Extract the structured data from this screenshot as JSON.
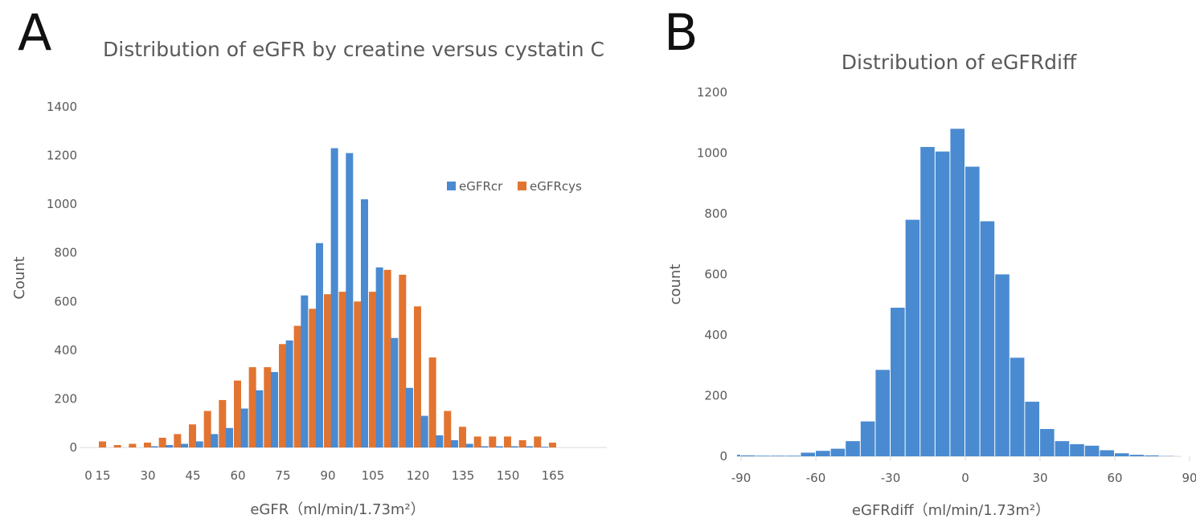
{
  "panels": {
    "a_letter": "A",
    "b_letter": "B"
  },
  "chart_data": [
    {
      "type": "bar",
      "title": "Distribution of eGFR by creatine versus cystatin C",
      "xlabel": "eGFR（ml/min/1.73m²）",
      "ylabel": "Count",
      "ylim": [
        0,
        1400
      ],
      "yticks": [
        0,
        200,
        400,
        600,
        800,
        1000,
        1200,
        1400
      ],
      "xticks": [
        "0",
        "15",
        "30",
        "45",
        "60",
        "75",
        "90",
        "105",
        "120",
        "135",
        "150",
        "165"
      ],
      "categories": [
        15,
        20,
        25,
        30,
        35,
        40,
        45,
        50,
        55,
        60,
        65,
        70,
        75,
        80,
        85,
        90,
        95,
        100,
        105,
        110,
        115,
        120,
        125,
        130,
        135,
        140,
        145,
        150,
        155,
        160,
        165,
        170
      ],
      "series": [
        {
          "name": "eGFRcr",
          "color": "#4a8ad0",
          "values": [
            0,
            0,
            0,
            0,
            5,
            10,
            15,
            25,
            55,
            80,
            160,
            235,
            310,
            440,
            625,
            840,
            1230,
            1210,
            1020,
            740,
            450,
            245,
            130,
            50,
            30,
            15,
            5,
            5,
            5,
            5,
            3,
            0
          ]
        },
        {
          "name": "eGFRcys",
          "color": "#e27431",
          "values": [
            25,
            10,
            15,
            20,
            40,
            55,
            95,
            150,
            195,
            275,
            330,
            330,
            425,
            500,
            570,
            630,
            640,
            600,
            640,
            730,
            710,
            580,
            370,
            150,
            85,
            45,
            45,
            45,
            30,
            45,
            20,
            0
          ]
        }
      ],
      "legend": "top-right"
    },
    {
      "type": "bar",
      "title": "Distribution of eGFRdiff",
      "xlabel": "eGFRdiff（ml/min/1.73m²）",
      "ylabel": "count",
      "ylim": [
        0,
        1200
      ],
      "yticks": [
        0,
        200,
        400,
        600,
        800,
        1000,
        1200
      ],
      "xticks": [
        "-90",
        "-60",
        "-30",
        "0",
        "30",
        "60",
        "90"
      ],
      "bin_width": 6,
      "categories": [
        -99,
        -93,
        -87,
        -81,
        -75,
        -69,
        -63,
        -57,
        -51,
        -45,
        -39,
        -33,
        -27,
        -21,
        -15,
        -9,
        -3,
        3,
        9,
        15,
        21,
        27,
        33,
        39,
        45,
        51,
        57,
        63,
        69,
        75,
        81,
        87
      ],
      "series": [
        {
          "name": "eGFRdiff",
          "color": "#4a8ad0",
          "values": [
            5,
            5,
            3,
            2,
            2,
            2,
            12,
            18,
            25,
            50,
            115,
            285,
            490,
            780,
            1020,
            1005,
            1080,
            955,
            775,
            600,
            325,
            180,
            90,
            50,
            40,
            35,
            20,
            10,
            5,
            3,
            1,
            0
          ]
        }
      ]
    }
  ]
}
